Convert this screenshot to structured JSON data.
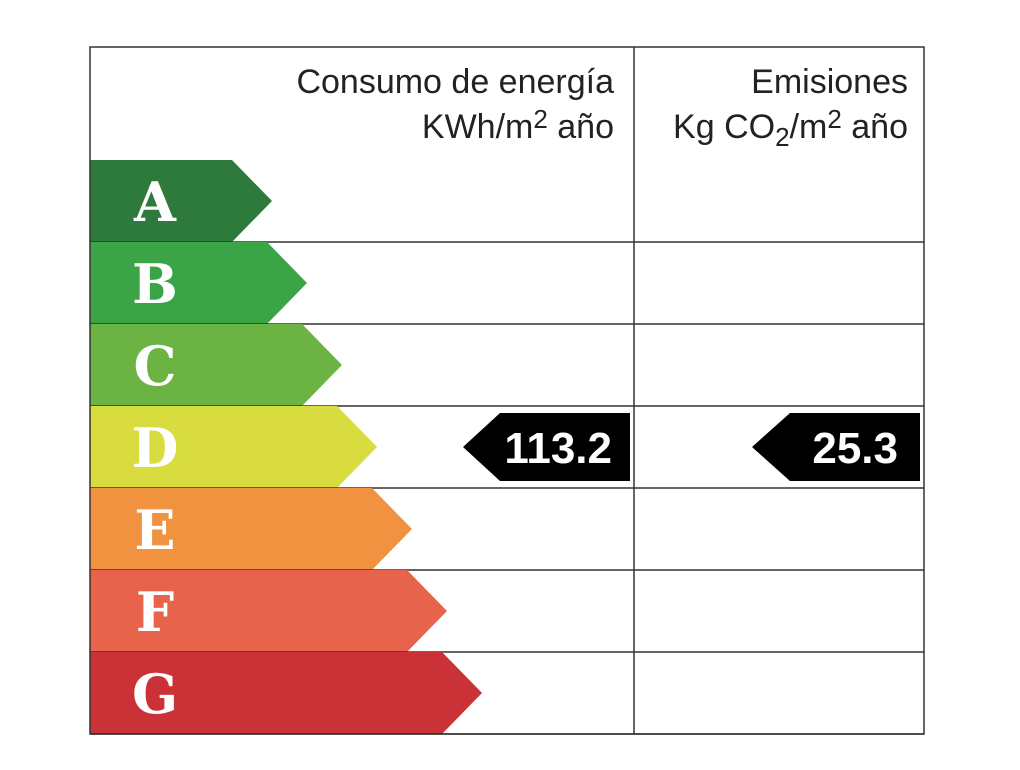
{
  "header": {
    "energy": {
      "title": "Consumo de energía",
      "unit_parts": [
        "KWh/m",
        "2",
        " año"
      ]
    },
    "emissions": {
      "title": "Emisiones",
      "unit_parts": [
        "Kg CO",
        "2",
        "/m",
        "2",
        " año"
      ]
    }
  },
  "rows": [
    {
      "letter": "A",
      "color": "#2e7a3d"
    },
    {
      "letter": "B",
      "color": "#3aa447"
    },
    {
      "letter": "C",
      "color": "#6bb444"
    },
    {
      "letter": "D",
      "color": "#d8dc3e",
      "energy": "113.2",
      "emissions": "25.3"
    },
    {
      "letter": "E",
      "color": "#f0923f"
    },
    {
      "letter": "F",
      "color": "#e8634b"
    },
    {
      "letter": "G",
      "color": "#cb3238"
    }
  ]
}
